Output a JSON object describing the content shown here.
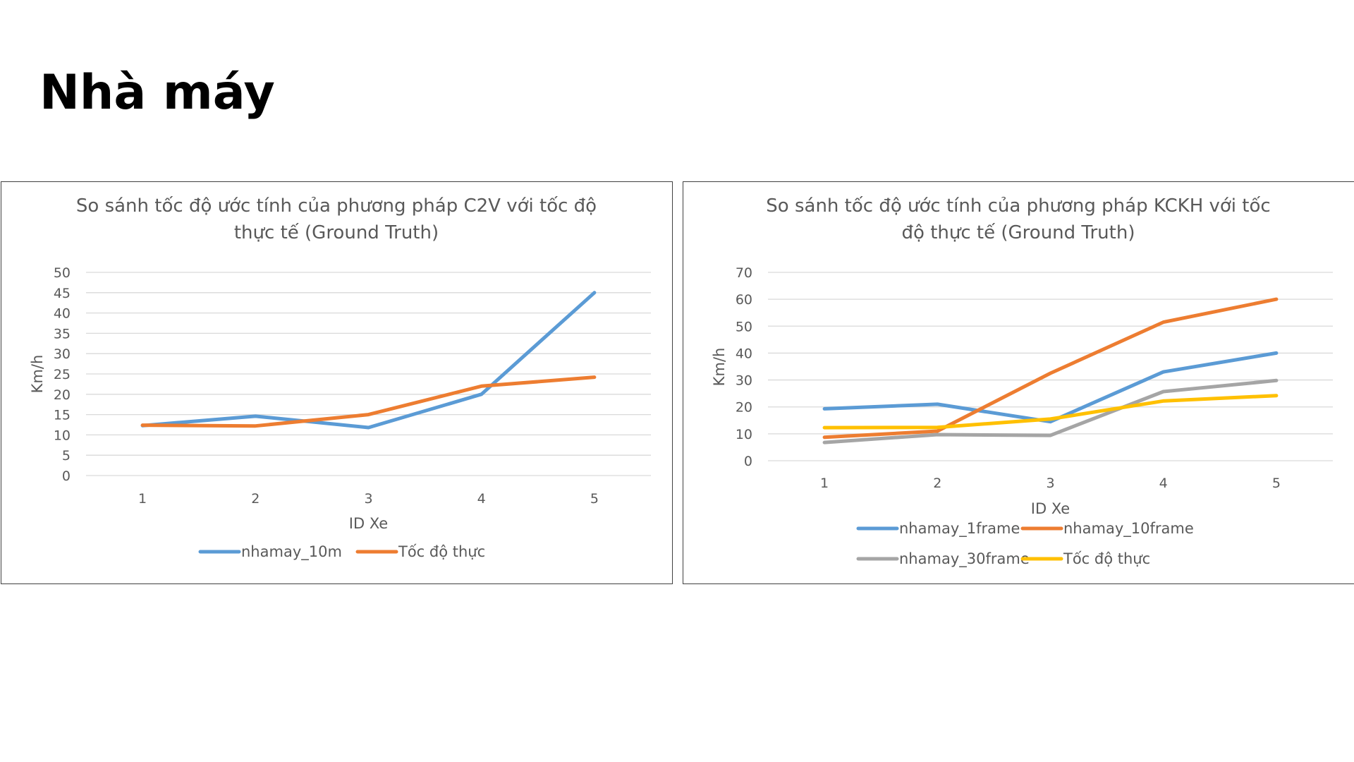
{
  "page": {
    "title": "Nhà máy"
  },
  "chart_data": [
    {
      "type": "line",
      "title_lines": [
        "So sánh tốc độ ước tính của phương pháp C2V với tốc độ",
        "thực tế (Ground Truth)"
      ],
      "xlabel": "ID Xe",
      "ylabel": "Km/h",
      "categories": [
        "1",
        "2",
        "3",
        "4",
        "5"
      ],
      "ylim": [
        0,
        50
      ],
      "yticks": [
        0,
        5,
        10,
        15,
        20,
        25,
        30,
        35,
        40,
        45,
        50
      ],
      "grid": true,
      "legend": "bottom",
      "series": [
        {
          "name": "nhamay_10m",
          "color": "#5B9BD5",
          "values": [
            12.3,
            14.6,
            11.8,
            20.0,
            45.0
          ]
        },
        {
          "name": "Tốc độ thực",
          "color": "#ED7D31",
          "values": [
            12.4,
            12.2,
            15.0,
            22.0,
            24.2
          ]
        }
      ]
    },
    {
      "type": "line",
      "title_lines": [
        "So sánh tốc độ ước tính của phương pháp KCKH với tốc",
        "độ thực tế (Ground Truth)"
      ],
      "xlabel": "ID Xe",
      "ylabel": "Km/h",
      "categories": [
        "1",
        "2",
        "3",
        "4",
        "5"
      ],
      "ylim": [
        0,
        70
      ],
      "yticks": [
        0,
        10,
        20,
        30,
        40,
        50,
        60,
        70
      ],
      "grid": true,
      "legend": "bottom",
      "series": [
        {
          "name": "nhamay_1frame",
          "color": "#5B9BD5",
          "values": [
            19.3,
            21.0,
            14.5,
            33.0,
            40.0
          ]
        },
        {
          "name": "nhamay_10frame",
          "color": "#ED7D31",
          "values": [
            8.7,
            11.0,
            32.5,
            51.5,
            60.0
          ]
        },
        {
          "name": "nhamay_30frame",
          "color": "#A5A5A5",
          "values": [
            6.8,
            9.7,
            9.4,
            25.7,
            29.8
          ]
        },
        {
          "name": "Tốc độ thực",
          "color": "#FFC000",
          "values": [
            12.3,
            12.4,
            15.5,
            22.2,
            24.2
          ]
        }
      ]
    }
  ]
}
